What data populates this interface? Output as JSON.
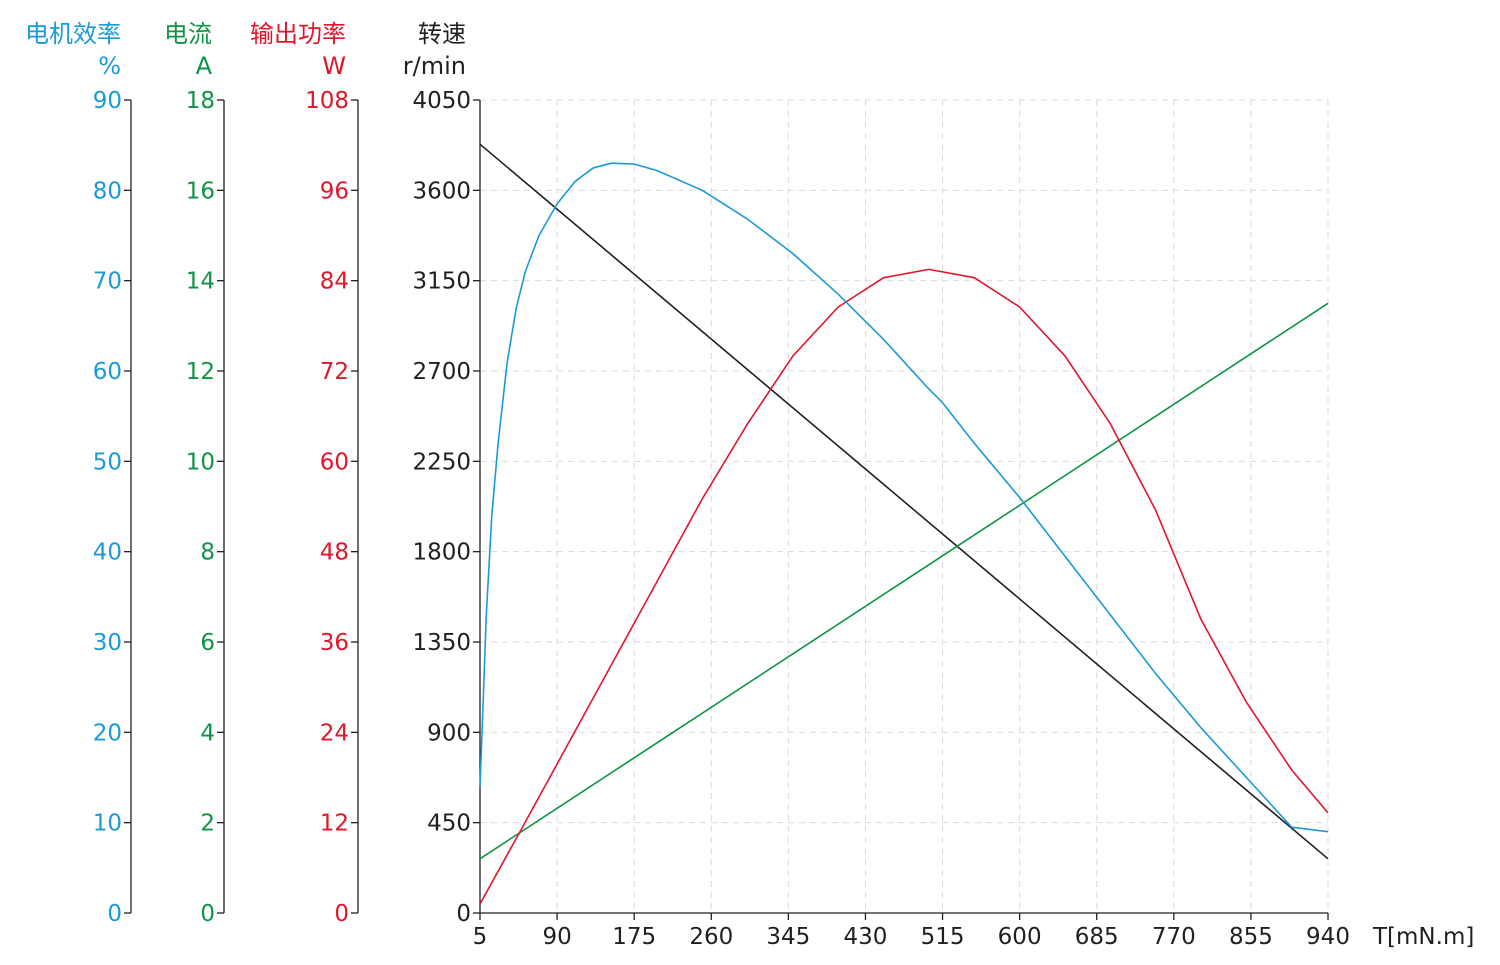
{
  "chart_data": {
    "type": "line",
    "x_axis": {
      "label": "T[mN.m]",
      "min": 5,
      "max": 940,
      "ticks": [
        5,
        90,
        175,
        260,
        345,
        430,
        515,
        600,
        685,
        770,
        855,
        940
      ]
    },
    "axes": [
      {
        "id": "efficiency",
        "title": "电机效率",
        "unit": "%",
        "min": 0,
        "max": 90,
        "ticks": [
          0,
          10,
          20,
          30,
          40,
          50,
          60,
          70,
          80,
          90
        ],
        "color": "#1a9bd7"
      },
      {
        "id": "current",
        "title": "电流",
        "unit": "A",
        "min": 0,
        "max": 18,
        "ticks": [
          0,
          2,
          4,
          6,
          8,
          10,
          12,
          14,
          16,
          18
        ],
        "color": "#0e9444"
      },
      {
        "id": "power",
        "title": "输出功率",
        "unit": "W",
        "min": 0,
        "max": 108,
        "ticks": [
          0,
          12,
          24,
          36,
          48,
          60,
          72,
          84,
          96,
          108
        ],
        "color": "#e0162b"
      },
      {
        "id": "speed",
        "title": "转速",
        "unit": "r/min",
        "min": 0,
        "max": 4050,
        "ticks": [
          0,
          450,
          900,
          1350,
          1800,
          2250,
          2700,
          3150,
          3600,
          4050
        ],
        "color": "#231f20"
      }
    ],
    "series": [
      {
        "axis": "speed",
        "color": "#231f20",
        "points": [
          [
            5,
            3830
          ],
          [
            940,
            270
          ]
        ]
      },
      {
        "axis": "current",
        "color": "#0e9444",
        "points": [
          [
            5,
            1.2
          ],
          [
            940,
            13.5
          ]
        ]
      },
      {
        "axis": "power",
        "color": "#e0162b",
        "points": [
          [
            5,
            1.2
          ],
          [
            50,
            11
          ],
          [
            100,
            22
          ],
          [
            150,
            33
          ],
          [
            200,
            44
          ],
          [
            250,
            55
          ],
          [
            300,
            65
          ],
          [
            350,
            74
          ],
          [
            400,
            80.5
          ],
          [
            450,
            84.4
          ],
          [
            500,
            85.5
          ],
          [
            550,
            84.4
          ],
          [
            600,
            80.5
          ],
          [
            650,
            74
          ],
          [
            700,
            65
          ],
          [
            750,
            53.5
          ],
          [
            800,
            39
          ],
          [
            850,
            28
          ],
          [
            900,
            19
          ],
          [
            940,
            13.3
          ]
        ]
      }
    ],
    "efficiency_points": [
      [
        5,
        14
      ],
      [
        8,
        22
      ],
      [
        12,
        33
      ],
      [
        18,
        44
      ],
      [
        25,
        52
      ],
      [
        35,
        61
      ],
      [
        45,
        67
      ],
      [
        55,
        71
      ],
      [
        70,
        75
      ],
      [
        90,
        78.5
      ],
      [
        110,
        81
      ],
      [
        130,
        82.5
      ],
      [
        150,
        83
      ],
      [
        175,
        82.9
      ],
      [
        200,
        82.2
      ],
      [
        250,
        80
      ],
      [
        300,
        76.8
      ],
      [
        350,
        73
      ],
      [
        400,
        68.5
      ],
      [
        450,
        63.5
      ],
      [
        500,
        58
      ],
      [
        515,
        56.5
      ],
      [
        550,
        52
      ],
      [
        600,
        46
      ],
      [
        650,
        39.5
      ],
      [
        700,
        33
      ],
      [
        750,
        26.5
      ],
      [
        800,
        20.5
      ],
      [
        850,
        15
      ],
      [
        900,
        9.5
      ],
      [
        940,
        9
      ]
    ],
    "grid": true
  }
}
